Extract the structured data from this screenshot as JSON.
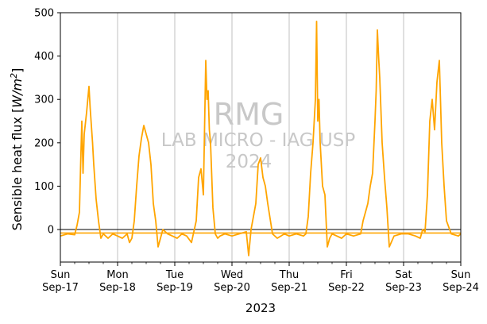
{
  "chart_data": {
    "type": "line",
    "xlabel": "2023",
    "ylabel_text": "Sensible heat flux [",
    "ylabel_unit": "W/m",
    "ylabel_exp": "2",
    "ylabel_close": "]",
    "ylim": [
      -75,
      500
    ],
    "yticks": [
      0,
      100,
      200,
      300,
      400,
      500
    ],
    "xlim": [
      "2023-09-17",
      "2023-09-24"
    ],
    "xticks": [
      {
        "date": "2023-09-17",
        "day": "Sun",
        "label": "Sep-17"
      },
      {
        "date": "2023-09-18",
        "day": "Mon",
        "label": "Sep-18"
      },
      {
        "date": "2023-09-19",
        "day": "Tue",
        "label": "Sep-19"
      },
      {
        "date": "2023-09-20",
        "day": "Wed",
        "label": "Sep-20"
      },
      {
        "date": "2023-09-21",
        "day": "Thu",
        "label": "Sep-21"
      },
      {
        "date": "2023-09-22",
        "day": "Fri",
        "label": "Sep-22"
      },
      {
        "date": "2023-09-23",
        "day": "Sat",
        "label": "Sep-23"
      },
      {
        "date": "2023-09-24",
        "day": "Sun",
        "label": "Sep-24"
      }
    ],
    "grid": "vertical",
    "zero_line": 0,
    "mean_line": -8,
    "series_color": "#ffa500",
    "watermark": [
      "RMG",
      "LAB MICRO - IAG USP",
      "2024"
    ],
    "series": [
      {
        "x": [
          "2023-09-17 00:00",
          "2023-09-17 03:00",
          "2023-09-17 06:00",
          "2023-09-17 07:00",
          "2023-09-17 08:00",
          "2023-09-17 08:30",
          "2023-09-17 09:00",
          "2023-09-17 09:30",
          "2023-09-17 10:00",
          "2023-09-17 11:00",
          "2023-09-17 11:30",
          "2023-09-17 12:00",
          "2023-09-17 12:30",
          "2023-09-17 13:00",
          "2023-09-17 13:30",
          "2023-09-17 14:00",
          "2023-09-17 15:00",
          "2023-09-17 16:00",
          "2023-09-17 17:00",
          "2023-09-17 18:00",
          "2023-09-17 19:00",
          "2023-09-17 20:00",
          "2023-09-17 22:00",
          "2023-09-18 00:00",
          "2023-09-18 02:00",
          "2023-09-18 04:00",
          "2023-09-18 05:00",
          "2023-09-18 06:00",
          "2023-09-18 07:00",
          "2023-09-18 08:00",
          "2023-09-18 09:00",
          "2023-09-18 10:00",
          "2023-09-18 11:00",
          "2023-09-18 12:00",
          "2023-09-18 13:00",
          "2023-09-18 14:00",
          "2023-09-18 15:00",
          "2023-09-18 16:00",
          "2023-09-18 17:00",
          "2023-09-18 18:00",
          "2023-09-18 19:00",
          "2023-09-18 21:00",
          "2023-09-18 23:00",
          "2023-09-19 01:00",
          "2023-09-19 03:00",
          "2023-09-19 05:00",
          "2023-09-19 07:00",
          "2023-09-19 09:00",
          "2023-09-19 10:00",
          "2023-09-19 11:00",
          "2023-09-19 12:00",
          "2023-09-19 13:00",
          "2023-09-19 13:30",
          "2023-09-19 14:00",
          "2023-09-19 14:30",
          "2023-09-19 15:00",
          "2023-09-19 16:00",
          "2023-09-19 17:00",
          "2023-09-19 18:00",
          "2023-09-19 19:00",
          "2023-09-19 21:00",
          "2023-09-20 00:00",
          "2023-09-20 03:00",
          "2023-09-20 06:00",
          "2023-09-20 07:00",
          "2023-09-20 08:00",
          "2023-09-20 09:00",
          "2023-09-20 10:00",
          "2023-09-20 11:00",
          "2023-09-20 12:00",
          "2023-09-20 13:00",
          "2023-09-20 14:00",
          "2023-09-20 15:00",
          "2023-09-20 16:00",
          "2023-09-20 17:00",
          "2023-09-20 19:00",
          "2023-09-20 22:00",
          "2023-09-21 00:00",
          "2023-09-21 03:00",
          "2023-09-21 06:00",
          "2023-09-21 07:00",
          "2023-09-21 08:00",
          "2023-09-21 09:00",
          "2023-09-21 10:00",
          "2023-09-21 11:00",
          "2023-09-21 11:30",
          "2023-09-21 12:00",
          "2023-09-21 12:30",
          "2023-09-21 13:00",
          "2023-09-21 14:00",
          "2023-09-21 15:00",
          "2023-09-21 16:00",
          "2023-09-21 17:00",
          "2023-09-21 18:00",
          "2023-09-21 20:00",
          "2023-09-21 22:00",
          "2023-09-22 00:00",
          "2023-09-22 03:00",
          "2023-09-22 06:00",
          "2023-09-22 07:00",
          "2023-09-22 08:00",
          "2023-09-22 09:00",
          "2023-09-22 10:00",
          "2023-09-22 11:00",
          "2023-09-22 12:00",
          "2023-09-22 12:30",
          "2023-09-22 13:00",
          "2023-09-22 13:30",
          "2023-09-22 14:00",
          "2023-09-22 15:00",
          "2023-09-22 16:00",
          "2023-09-22 17:00",
          "2023-09-22 18:00",
          "2023-09-22 20:00",
          "2023-09-22 23:00",
          "2023-09-23 02:00",
          "2023-09-23 05:00",
          "2023-09-23 07:00",
          "2023-09-23 08:00",
          "2023-09-23 09:00",
          "2023-09-23 10:00",
          "2023-09-23 11:00",
          "2023-09-23 12:00",
          "2023-09-23 13:00",
          "2023-09-23 14:00",
          "2023-09-23 15:00",
          "2023-09-23 16:00",
          "2023-09-23 17:00",
          "2023-09-23 18:00",
          "2023-09-23 20:00",
          "2023-09-23 23:00",
          "2023-09-24 00:00"
        ],
        "y": [
          -15,
          -10,
          -12,
          10,
          40,
          150,
          250,
          130,
          220,
          270,
          300,
          330,
          280,
          240,
          200,
          150,
          70,
          20,
          -20,
          -10,
          -15,
          -20,
          -10,
          -15,
          -20,
          -10,
          -30,
          -20,
          20,
          100,
          170,
          210,
          240,
          220,
          200,
          150,
          60,
          20,
          -40,
          -20,
          0,
          -10,
          -15,
          -20,
          -10,
          -15,
          -30,
          20,
          120,
          140,
          80,
          390,
          300,
          320,
          230,
          200,
          50,
          -10,
          -20,
          -15,
          -10,
          -15,
          -10,
          -5,
          -60,
          0,
          30,
          60,
          150,
          165,
          120,
          100,
          60,
          25,
          -10,
          -20,
          -10,
          -15,
          -10,
          -15,
          -10,
          30,
          130,
          200,
          300,
          480,
          250,
          300,
          200,
          100,
          80,
          -40,
          -20,
          -10,
          -15,
          -20,
          -10,
          -15,
          -10,
          20,
          40,
          60,
          100,
          130,
          250,
          320,
          460,
          400,
          350,
          200,
          120,
          50,
          -40,
          -15,
          -10,
          -10,
          -15,
          -20,
          0,
          -5,
          80,
          250,
          300,
          230,
          340,
          390,
          200,
          100,
          20,
          -10,
          -15,
          -10
        ]
      }
    ]
  }
}
